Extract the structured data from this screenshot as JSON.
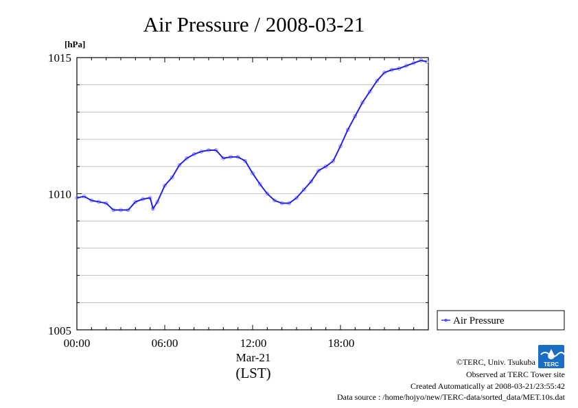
{
  "chart_data": {
    "type": "line",
    "title": "Air Pressure / 2008-03-21",
    "y_unit": "[hPa]",
    "ylim": [
      1005,
      1015
    ],
    "y_ticks": [
      "1015",
      "1010",
      "1005"
    ],
    "x_ticks": [
      "00:00",
      "06:00",
      "12:00",
      "18:00"
    ],
    "x_date_label": "Mar-21",
    "x_axis_label": "(LST)",
    "xlim_hours": [
      0,
      23.9
    ],
    "grid": true,
    "legend_position": "right",
    "series": [
      {
        "name": "Air Pressure",
        "color": "#3333ff",
        "x": [
          0,
          0.5,
          1,
          1.5,
          2,
          2.5,
          3,
          3.5,
          4,
          4.5,
          5,
          5.2,
          5.5,
          6,
          6.5,
          7,
          7.5,
          8,
          8.5,
          9,
          9.5,
          10,
          10.5,
          11,
          11.5,
          12,
          12.5,
          13,
          13.5,
          14,
          14.5,
          15,
          15.5,
          16,
          16.5,
          17,
          17.5,
          18,
          18.5,
          19,
          19.5,
          20,
          20.5,
          21,
          21.5,
          22,
          22.5,
          23,
          23.5,
          23.9
        ],
        "y": [
          1009.85,
          1009.9,
          1009.75,
          1009.7,
          1009.65,
          1009.4,
          1009.4,
          1009.4,
          1009.7,
          1009.8,
          1009.85,
          1009.45,
          1009.7,
          1010.3,
          1010.6,
          1011.05,
          1011.3,
          1011.45,
          1011.55,
          1011.6,
          1011.6,
          1011.3,
          1011.35,
          1011.35,
          1011.2,
          1010.75,
          1010.35,
          1010.0,
          1009.75,
          1009.65,
          1009.65,
          1009.85,
          1010.15,
          1010.45,
          1010.85,
          1011.0,
          1011.2,
          1011.75,
          1012.35,
          1012.85,
          1013.35,
          1013.75,
          1014.15,
          1014.45,
          1014.55,
          1014.6,
          1014.7,
          1014.8,
          1014.9,
          1014.85
        ]
      }
    ]
  },
  "credits": {
    "copyright": "©TERC, Univ. Tsukuba",
    "observed": "Observed at TERC Tower site",
    "created": "Created Automatically at 2008-03-21/23:55:42",
    "source": "Data source : /home/hojyo/new/TERC-data/sorted_data/MET.10s.dat"
  },
  "logo": {
    "text": "TERC",
    "color": "#1a6fc4"
  }
}
